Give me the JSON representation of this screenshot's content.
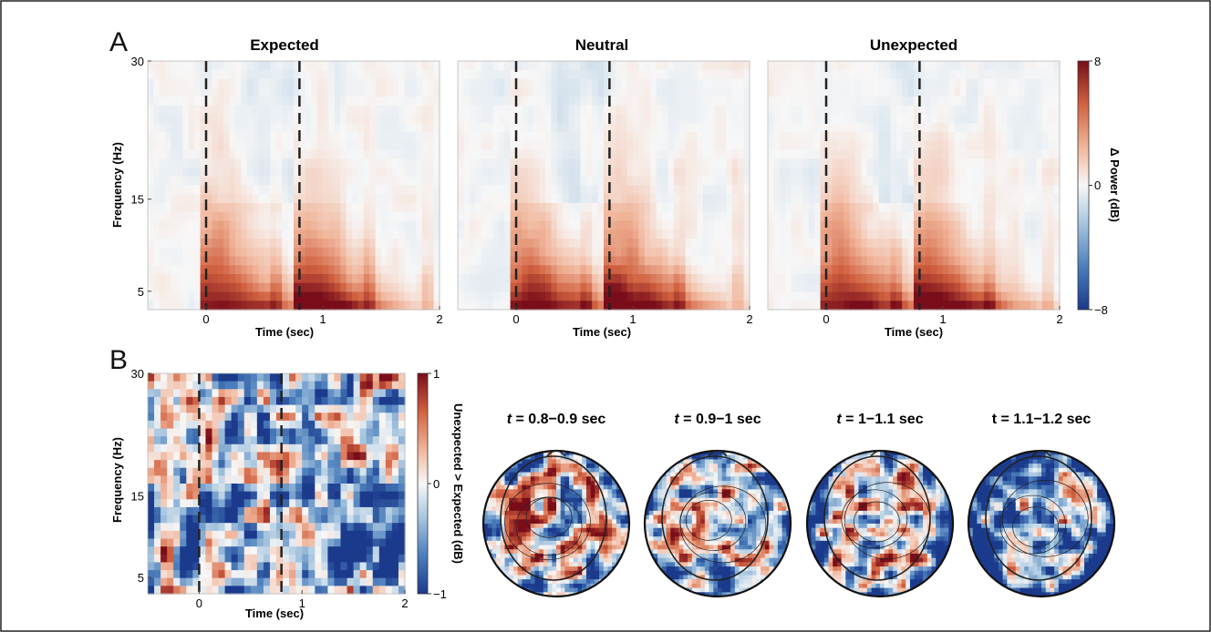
{
  "chart_data": [
    {
      "type": "heatmap",
      "panel_label": "A",
      "title": "Expected",
      "xlabel": "Time (sec)",
      "ylabel": "Frequency (Hz)",
      "xlim": [
        -0.5,
        2
      ],
      "ylim": [
        3,
        30
      ],
      "x_ticks": [
        {
          "value": 0,
          "label": "0"
        },
        {
          "value": 1,
          "label": "1"
        },
        {
          "value": 2,
          "label": "2"
        }
      ],
      "y_ticks": [
        {
          "value": 5,
          "label": "5"
        },
        {
          "value": 15,
          "label": "15"
        },
        {
          "value": 30,
          "label": "30"
        }
      ],
      "event_lines_sec": [
        0,
        0.8
      ],
      "grid": false,
      "color_scale": "blue-white-red",
      "peak_db": 7.5
    },
    {
      "type": "heatmap",
      "title": "Neutral",
      "xlabel": "Time (sec)",
      "xlim": [
        -0.5,
        2
      ],
      "ylim": [
        3,
        30
      ],
      "x_ticks": [
        {
          "value": 0,
          "label": "0"
        },
        {
          "value": 1,
          "label": "1"
        },
        {
          "value": 2,
          "label": "2"
        }
      ],
      "event_lines_sec": [
        0,
        0.8
      ],
      "grid": false,
      "color_scale": "blue-white-red",
      "peak_db": 7.6
    },
    {
      "type": "heatmap",
      "title": "Unexpected",
      "xlabel": "Time (sec)",
      "xlim": [
        -0.5,
        2
      ],
      "ylim": [
        3,
        30
      ],
      "x_ticks": [
        {
          "value": 0,
          "label": "0"
        },
        {
          "value": 1,
          "label": "1"
        },
        {
          "value": 2,
          "label": "2"
        }
      ],
      "event_lines_sec": [
        0,
        0.8
      ],
      "grid": false,
      "color_scale": "blue-white-red",
      "peak_db": 7.6,
      "colorbar": {
        "label": "Δ Power (dB)",
        "min": -8,
        "max": 8,
        "ticks": [
          {
            "value": 8,
            "label": "8"
          },
          {
            "value": 0,
            "label": "0"
          },
          {
            "value": -8,
            "label": "−8"
          }
        ],
        "colors": [
          "#1b3a8c",
          "#4a7dbb",
          "#a9c7e0",
          "#f7f7f7",
          "#f1b79d",
          "#d0603f",
          "#7a0d1a"
        ]
      }
    },
    {
      "type": "heatmap",
      "panel_label": "B",
      "xlabel": "Time (sec)",
      "ylabel": "Frequency (Hz)",
      "xlim": [
        -0.5,
        2
      ],
      "ylim": [
        3,
        30
      ],
      "x_ticks": [
        {
          "value": 0,
          "label": "0"
        },
        {
          "value": 1,
          "label": "1"
        },
        {
          "value": 2,
          "label": "2"
        }
      ],
      "y_ticks": [
        {
          "value": 5,
          "label": "5"
        },
        {
          "value": 15,
          "label": "15"
        },
        {
          "value": 30,
          "label": "30"
        }
      ],
      "event_lines_sec": [
        0,
        0.8
      ],
      "grid": false,
      "color_scale": "blue-white-red",
      "colorbar": {
        "label": "Unexpected > Expected (dB)",
        "min": -1,
        "max": 1,
        "ticks": [
          {
            "value": 1,
            "label": "1"
          },
          {
            "value": 0,
            "label": "0"
          },
          {
            "value": -1,
            "label": "−1"
          }
        ],
        "colors": [
          "#1b3a8c",
          "#4a7dbb",
          "#a9c7e0",
          "#f7f7f7",
          "#f1b79d",
          "#d0603f",
          "#7a0d1a"
        ]
      }
    }
  ],
  "topomaps": [
    {
      "italic": "t",
      "range": " = 0.8−0.9 sec"
    },
    {
      "italic": "t",
      "range": " = 0.9−1 sec"
    },
    {
      "italic": "t",
      "range": " = 1−1.1 sec"
    },
    {
      "italic": "",
      "range": "t = 1.1−1.2 sec"
    }
  ]
}
